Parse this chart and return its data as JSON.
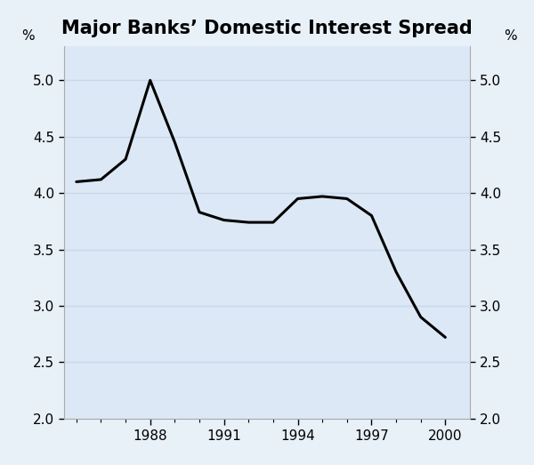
{
  "title": "Major Banks’ Domestic Interest Spread",
  "ylabel_left": "%",
  "ylabel_right": "%",
  "background_color": "#e8f0f8",
  "plot_bg_color": "#dce8f5",
  "line_color": "#000000",
  "line_width": 2.2,
  "xlim": [
    1984.5,
    2001.0
  ],
  "ylim": [
    2.0,
    5.3
  ],
  "yticks": [
    2.0,
    2.5,
    3.0,
    3.5,
    4.0,
    4.5,
    5.0
  ],
  "xtick_labels": [
    "1988",
    "1991",
    "1994",
    "1997",
    "2000"
  ],
  "xtick_positions": [
    1988,
    1991,
    1994,
    1997,
    2000
  ],
  "x": [
    1985,
    1986,
    1987,
    1988,
    1989,
    1990,
    1991,
    1992,
    1993,
    1994,
    1995,
    1996,
    1997,
    1998,
    1999,
    2000
  ],
  "y": [
    4.1,
    4.12,
    4.3,
    5.0,
    4.45,
    3.83,
    3.76,
    3.74,
    3.74,
    3.95,
    3.97,
    3.95,
    3.8,
    3.3,
    2.9,
    2.72
  ],
  "title_fontsize": 15,
  "tick_fontsize": 11,
  "grid_color": "#c8d8eb",
  "grid_linewidth": 1.0
}
